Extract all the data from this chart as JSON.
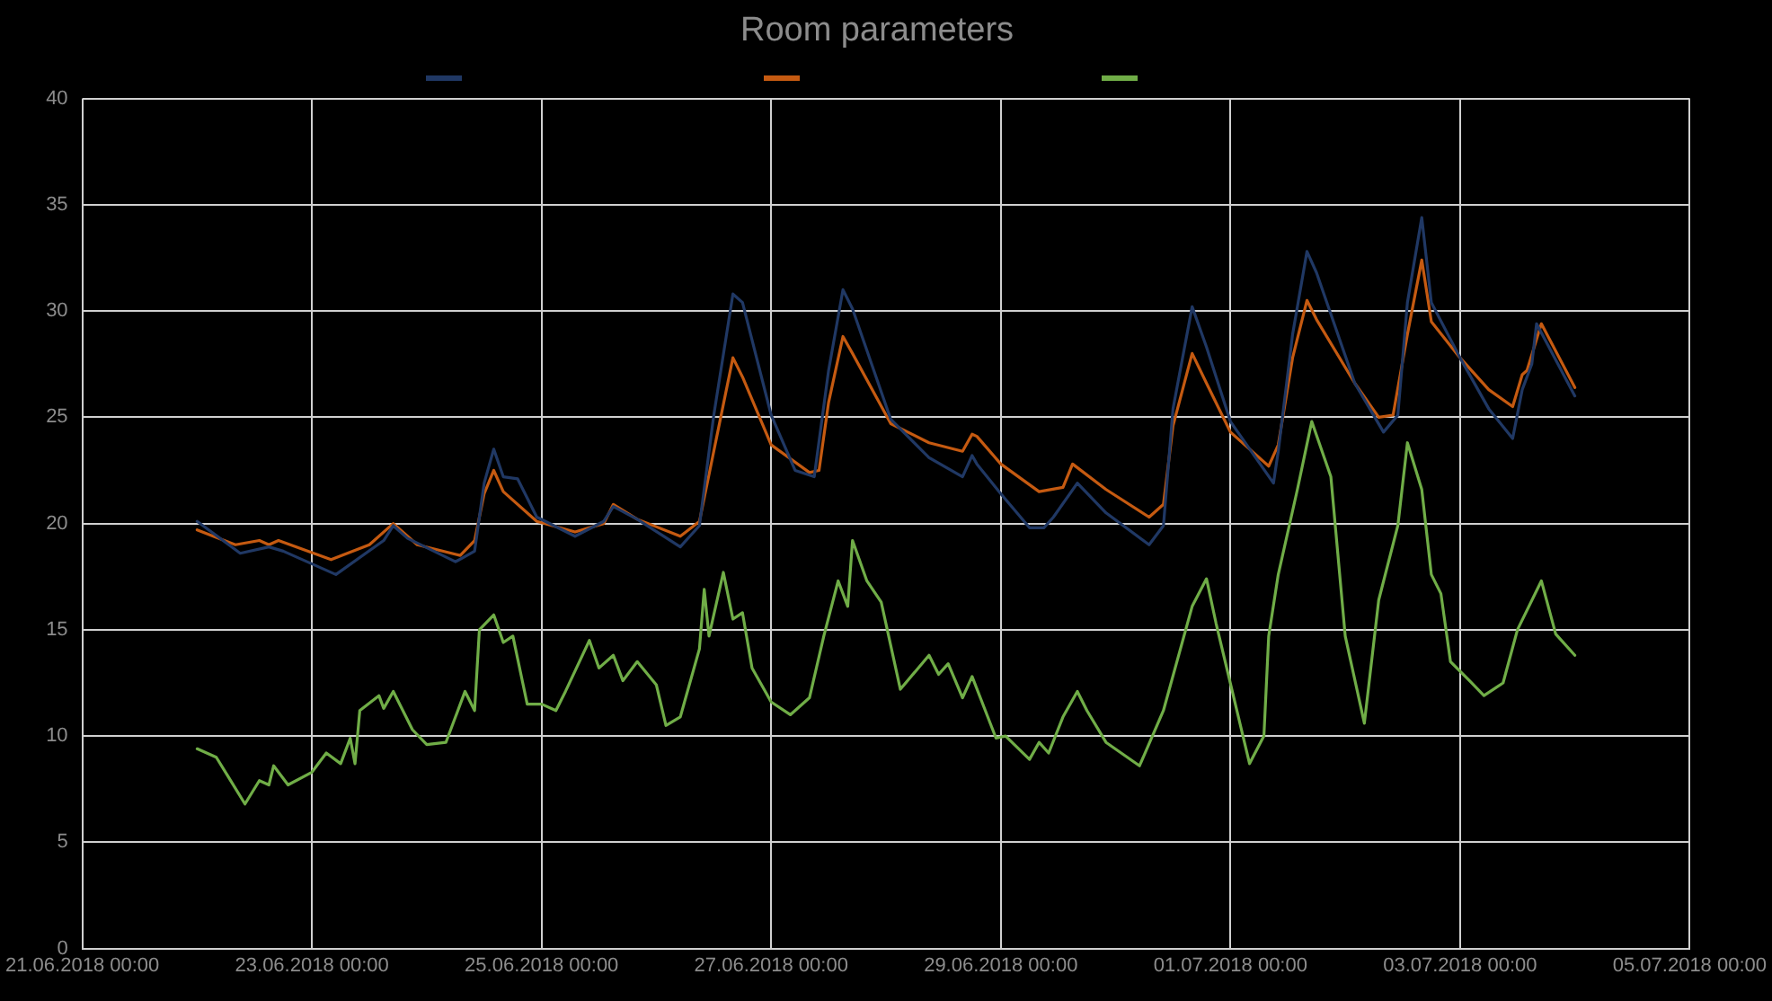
{
  "chart_data": {
    "type": "line",
    "title": "Room parameters",
    "grid": true,
    "marker": "none",
    "line_style": "solid",
    "xlim": [
      "2018-06-21",
      "2018-07-05"
    ],
    "xticks": [
      {
        "value": "2018-06-21",
        "label": "21.06.2018 00:00"
      },
      {
        "value": "2018-06-23",
        "label": "23.06.2018 00:00"
      },
      {
        "value": "2018-06-25",
        "label": "25.06.2018 00:00"
      },
      {
        "value": "2018-06-27",
        "label": "27.06.2018 00:00"
      },
      {
        "value": "2018-06-29",
        "label": "29.06.2018 00:00"
      },
      {
        "value": "2018-07-01",
        "label": "01.07.2018 00:00"
      },
      {
        "value": "2018-07-03",
        "label": "03.07.2018 00:00"
      },
      {
        "value": "2018-07-05",
        "label": "05.07.2018 00:00"
      }
    ],
    "ylim": [
      0,
      40
    ],
    "yticks": [
      0,
      5,
      10,
      15,
      20,
      25,
      30,
      35,
      40
    ],
    "series": [
      {
        "color": "#203864",
        "x": [
          "2018-06-22T00:00",
          "2018-06-22T09:00",
          "2018-06-22T15:00",
          "2018-06-22T18:00",
          "2018-06-23T05:00",
          "2018-06-23T15:00",
          "2018-06-23T17:00",
          "2018-06-23T20:00",
          "2018-06-24T06:00",
          "2018-06-24T10:00",
          "2018-06-24T12:00",
          "2018-06-24T14:00",
          "2018-06-24T16:00",
          "2018-06-24T19:00",
          "2018-06-24T23:00",
          "2018-06-25T07:00",
          "2018-06-25T13:00",
          "2018-06-25T15:00",
          "2018-06-25T20:00",
          "2018-06-26T05:00",
          "2018-06-26T09:00",
          "2018-06-26T12:00",
          "2018-06-26T16:00",
          "2018-06-26T18:00",
          "2018-06-27T00:00",
          "2018-06-27T05:00",
          "2018-06-27T09:00",
          "2018-06-27T12:00",
          "2018-06-27T15:00",
          "2018-06-27T17:00",
          "2018-06-28T01:00",
          "2018-06-28T09:00",
          "2018-06-28T16:00",
          "2018-06-28T18:00",
          "2018-06-28T19:00",
          "2018-06-29T00:00",
          "2018-06-29T06:00",
          "2018-06-29T09:00",
          "2018-06-29T11:00",
          "2018-06-29T16:00",
          "2018-06-29T22:00",
          "2018-06-30T07:00",
          "2018-06-30T10:00",
          "2018-06-30T12:00",
          "2018-06-30T16:00",
          "2018-06-30T19:00",
          "2018-07-01T00:00",
          "2018-07-01T09:00",
          "2018-07-01T10:00",
          "2018-07-01T13:00",
          "2018-07-01T16:00",
          "2018-07-01T18:00",
          "2018-07-02T02:00",
          "2018-07-02T08:00",
          "2018-07-02T11:00",
          "2018-07-02T13:00",
          "2018-07-02T16:00",
          "2018-07-02T18:00",
          "2018-07-03T00:00",
          "2018-07-03T06:00",
          "2018-07-03T11:00",
          "2018-07-03T13:00",
          "2018-07-03T15:00",
          "2018-07-03T16:00",
          "2018-07-04T00:00"
        ],
        "values": [
          20.1,
          18.6,
          18.9,
          18.7,
          17.6,
          19.2,
          19.9,
          19.3,
          18.2,
          18.7,
          21.9,
          23.5,
          22.2,
          22.1,
          20.3,
          19.4,
          20.1,
          20.8,
          20.2,
          18.9,
          19.9,
          25.1,
          30.8,
          30.4,
          25.1,
          22.5,
          22.2,
          27.2,
          31.0,
          30.1,
          24.9,
          23.1,
          22.2,
          23.2,
          22.8,
          21.4,
          19.8,
          19.8,
          20.3,
          21.9,
          20.5,
          19.0,
          19.9,
          25.4,
          30.2,
          28.3,
          24.8,
          21.9,
          23.4,
          28.9,
          32.8,
          31.8,
          26.6,
          24.3,
          25.1,
          30.4,
          34.4,
          30.4,
          27.8,
          25.4,
          24.0,
          26.3,
          27.5,
          29.4,
          26.0
        ]
      },
      {
        "color": "#c55a11",
        "x": [
          "2018-06-22T00:00",
          "2018-06-22T08:00",
          "2018-06-22T13:00",
          "2018-06-22T15:00",
          "2018-06-22T17:00",
          "2018-06-23T04:00",
          "2018-06-23T12:00",
          "2018-06-23T17:00",
          "2018-06-23T22:00",
          "2018-06-24T07:00",
          "2018-06-24T10:00",
          "2018-06-24T12:00",
          "2018-06-24T14:00",
          "2018-06-24T16:00",
          "2018-06-24T23:00",
          "2018-06-25T07:00",
          "2018-06-25T13:00",
          "2018-06-25T15:00",
          "2018-06-25T20:00",
          "2018-06-26T05:00",
          "2018-06-26T09:00",
          "2018-06-26T12:00",
          "2018-06-26T16:00",
          "2018-06-26T18:00",
          "2018-06-27T00:00",
          "2018-06-27T08:00",
          "2018-06-27T10:00",
          "2018-06-27T12:00",
          "2018-06-27T15:00",
          "2018-06-27T17:00",
          "2018-06-28T01:00",
          "2018-06-28T09:00",
          "2018-06-28T16:00",
          "2018-06-28T18:00",
          "2018-06-28T19:00",
          "2018-06-29T00:00",
          "2018-06-29T08:00",
          "2018-06-29T13:00",
          "2018-06-29T15:00",
          "2018-06-29T22:00",
          "2018-06-30T07:00",
          "2018-06-30T10:00",
          "2018-06-30T12:00",
          "2018-06-30T16:00",
          "2018-06-30T19:00",
          "2018-07-01T00:00",
          "2018-07-01T08:00",
          "2018-07-01T10:00",
          "2018-07-01T13:00",
          "2018-07-01T16:00",
          "2018-07-01T18:00",
          "2018-07-02T02:00",
          "2018-07-02T07:00",
          "2018-07-02T10:00",
          "2018-07-02T13:00",
          "2018-07-02T16:00",
          "2018-07-02T18:00",
          "2018-07-03T00:00",
          "2018-07-03T06:00",
          "2018-07-03T11:00",
          "2018-07-03T13:00",
          "2018-07-03T14:00",
          "2018-07-03T17:00",
          "2018-07-04T00:00"
        ],
        "values": [
          19.7,
          19.0,
          19.2,
          19.0,
          19.2,
          18.3,
          19.0,
          20.0,
          19.0,
          18.5,
          19.2,
          21.4,
          22.5,
          21.5,
          20.1,
          19.6,
          20.0,
          20.9,
          20.2,
          19.4,
          20.1,
          23.4,
          27.8,
          26.9,
          23.7,
          22.4,
          22.5,
          25.7,
          28.8,
          28.0,
          24.7,
          23.8,
          23.4,
          24.2,
          24.1,
          22.8,
          21.5,
          21.7,
          22.8,
          21.6,
          20.3,
          20.9,
          24.6,
          28.0,
          26.6,
          24.3,
          22.7,
          23.7,
          27.8,
          30.5,
          29.6,
          26.6,
          25.0,
          25.1,
          28.9,
          32.4,
          29.5,
          27.8,
          26.3,
          25.5,
          27.0,
          27.2,
          29.4,
          26.4
        ]
      },
      {
        "color": "#70ad47",
        "x": [
          "2018-06-22T00:00",
          "2018-06-22T04:00",
          "2018-06-22T10:00",
          "2018-06-22T13:00",
          "2018-06-22T15:00",
          "2018-06-22T16:00",
          "2018-06-22T19:00",
          "2018-06-23T00:00",
          "2018-06-23T03:00",
          "2018-06-23T06:00",
          "2018-06-23T08:00",
          "2018-06-23T09:00",
          "2018-06-23T10:00",
          "2018-06-23T14:00",
          "2018-06-23T15:00",
          "2018-06-23T17:00",
          "2018-06-23T21:00",
          "2018-06-24T00:00",
          "2018-06-24T04:00",
          "2018-06-24T08:00",
          "2018-06-24T10:00",
          "2018-06-24T11:00",
          "2018-06-24T14:00",
          "2018-06-24T16:00",
          "2018-06-24T18:00",
          "2018-06-24T21:00",
          "2018-06-25T00:00",
          "2018-06-25T03:00",
          "2018-06-25T05:00",
          "2018-06-25T10:00",
          "2018-06-25T12:00",
          "2018-06-25T15:00",
          "2018-06-25T17:00",
          "2018-06-25T20:00",
          "2018-06-26T00:00",
          "2018-06-26T02:00",
          "2018-06-26T05:00",
          "2018-06-26T09:00",
          "2018-06-26T10:00",
          "2018-06-26T11:00",
          "2018-06-26T14:00",
          "2018-06-26T16:00",
          "2018-06-26T18:00",
          "2018-06-26T20:00",
          "2018-06-27T00:00",
          "2018-06-27T04:00",
          "2018-06-27T08:00",
          "2018-06-27T11:00",
          "2018-06-27T14:00",
          "2018-06-27T16:00",
          "2018-06-27T17:00",
          "2018-06-27T20:00",
          "2018-06-27T23:00",
          "2018-06-28T03:00",
          "2018-06-28T09:00",
          "2018-06-28T11:00",
          "2018-06-28T13:00",
          "2018-06-28T16:00",
          "2018-06-28T18:00",
          "2018-06-28T23:00",
          "2018-06-29T01:00",
          "2018-06-29T06:00",
          "2018-06-29T08:00",
          "2018-06-29T10:00",
          "2018-06-29T13:00",
          "2018-06-29T16:00",
          "2018-06-29T18:00",
          "2018-06-29T22:00",
          "2018-06-30T05:00",
          "2018-06-30T10:00",
          "2018-06-30T16:00",
          "2018-06-30T19:00",
          "2018-06-30T21:00",
          "2018-07-01T04:00",
          "2018-07-01T07:00",
          "2018-07-01T08:00",
          "2018-07-01T10:00",
          "2018-07-01T14:00",
          "2018-07-01T17:00",
          "2018-07-01T21:00",
          "2018-07-02T00:00",
          "2018-07-02T04:00",
          "2018-07-02T07:00",
          "2018-07-02T11:00",
          "2018-07-02T13:00",
          "2018-07-02T16:00",
          "2018-07-02T18:00",
          "2018-07-02T20:00",
          "2018-07-02T22:00",
          "2018-07-03T02:00",
          "2018-07-03T05:00",
          "2018-07-03T09:00",
          "2018-07-03T12:00",
          "2018-07-03T17:00",
          "2018-07-03T20:00",
          "2018-07-04T00:00"
        ],
        "values": [
          9.4,
          9.0,
          6.8,
          7.9,
          7.7,
          8.6,
          7.7,
          8.3,
          9.2,
          8.7,
          9.9,
          8.7,
          11.2,
          11.9,
          11.3,
          12.1,
          10.3,
          9.6,
          9.7,
          12.1,
          11.2,
          15.0,
          15.7,
          14.4,
          14.7,
          11.5,
          11.5,
          11.2,
          12.1,
          14.5,
          13.2,
          13.8,
          12.6,
          13.5,
          12.4,
          10.5,
          10.9,
          14.1,
          16.9,
          14.7,
          17.7,
          15.5,
          15.8,
          13.2,
          11.6,
          11.0,
          11.8,
          14.7,
          17.3,
          16.1,
          19.2,
          17.3,
          16.3,
          12.2,
          13.8,
          12.9,
          13.4,
          11.8,
          12.8,
          9.9,
          10.0,
          8.9,
          9.7,
          9.2,
          10.9,
          12.1,
          11.2,
          9.7,
          8.6,
          11.2,
          16.1,
          17.4,
          15.3,
          8.7,
          10.0,
          14.7,
          17.6,
          21.6,
          24.8,
          22.2,
          14.7,
          10.6,
          16.4,
          19.9,
          23.8,
          21.6,
          17.6,
          16.7,
          13.5,
          12.6,
          11.9,
          12.5,
          15.0,
          17.3,
          14.8,
          13.8
        ]
      }
    ]
  }
}
